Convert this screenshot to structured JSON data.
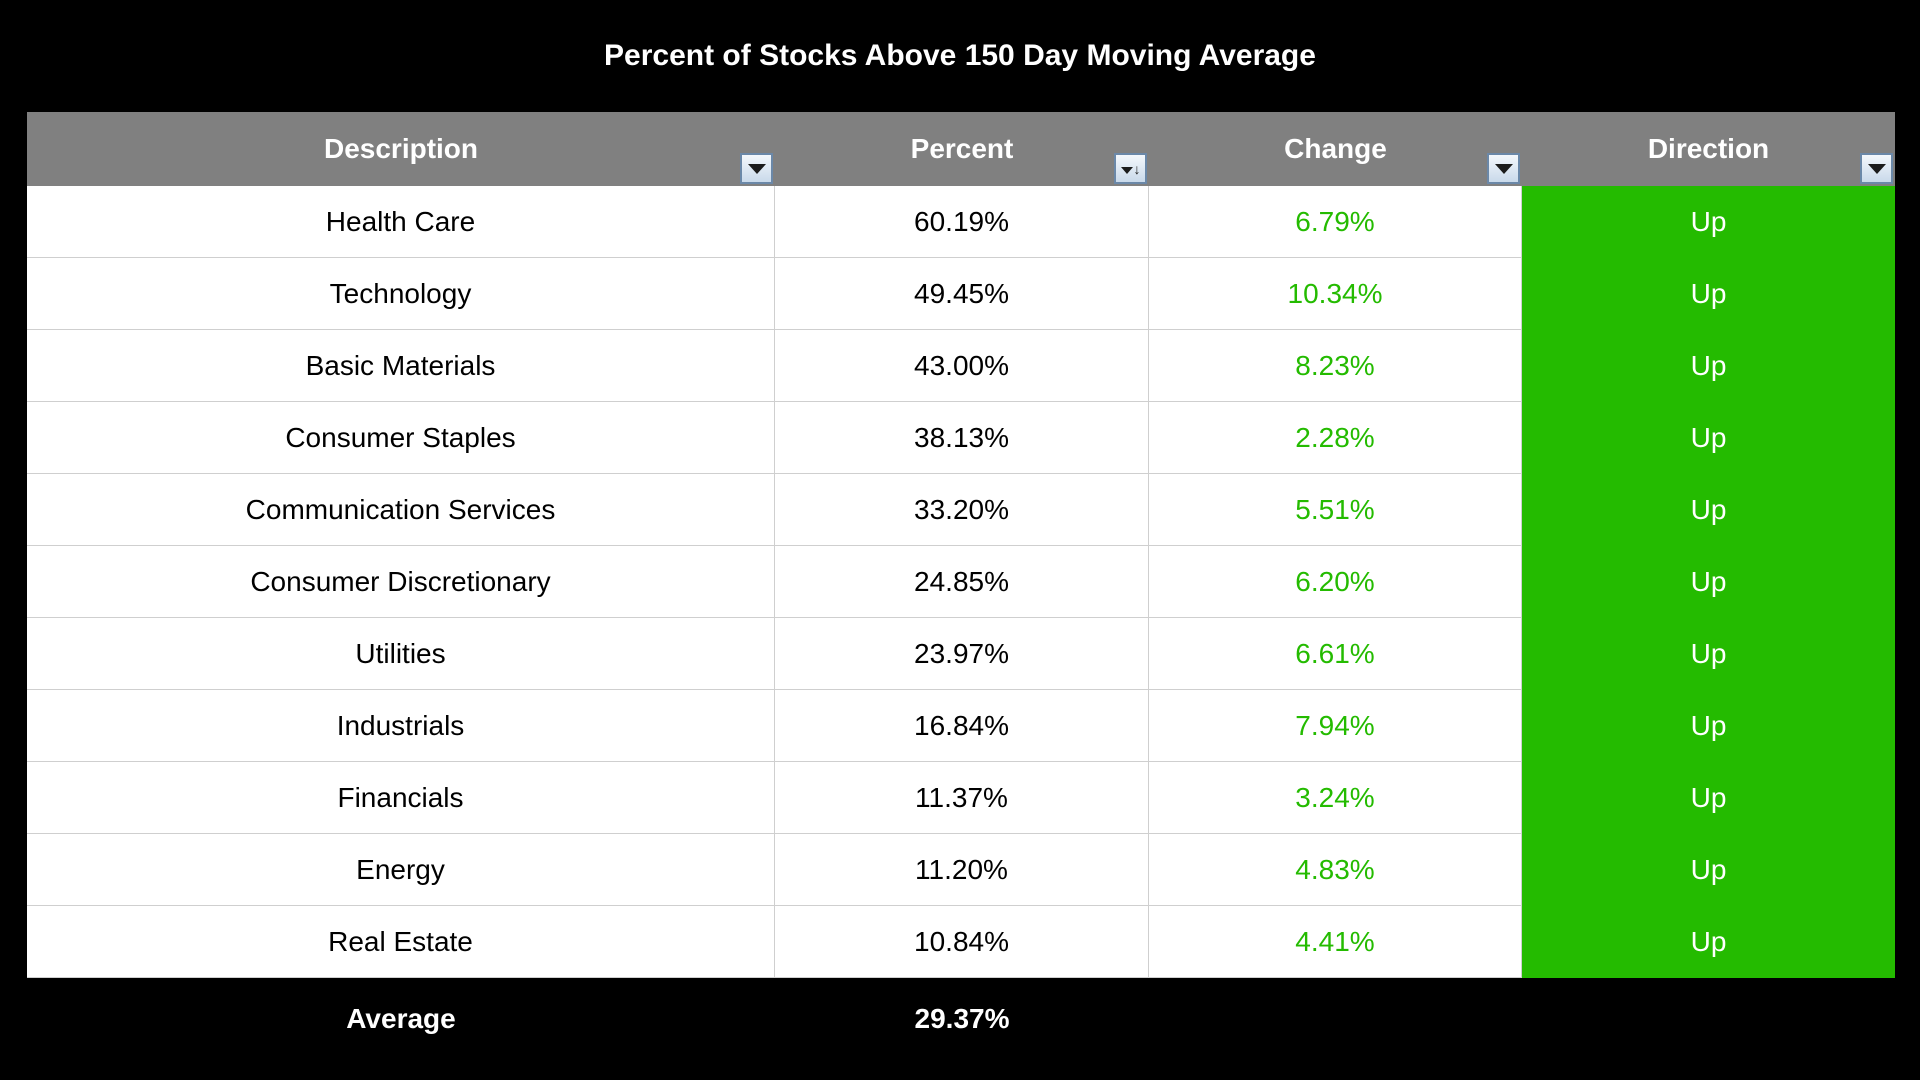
{
  "title": "Percent of Stocks Above 150 Day Moving Average",
  "columns": [
    "Description",
    "Percent",
    "Change",
    "Direction"
  ],
  "colors": {
    "header_bg": "#808080",
    "positive": "#24bb00",
    "background": "#000000"
  },
  "rows": [
    {
      "description": "Health Care",
      "percent": "60.19%",
      "change": "6.79%",
      "direction": "Up"
    },
    {
      "description": "Technology",
      "percent": "49.45%",
      "change": "10.34%",
      "direction": "Up"
    },
    {
      "description": "Basic Materials",
      "percent": "43.00%",
      "change": "8.23%",
      "direction": "Up"
    },
    {
      "description": "Consumer Staples",
      "percent": "38.13%",
      "change": "2.28%",
      "direction": "Up"
    },
    {
      "description": "Communication Services",
      "percent": "33.20%",
      "change": "5.51%",
      "direction": "Up"
    },
    {
      "description": "Consumer Discretionary",
      "percent": "24.85%",
      "change": "6.20%",
      "direction": "Up"
    },
    {
      "description": "Utilities",
      "percent": "23.97%",
      "change": "6.61%",
      "direction": "Up"
    },
    {
      "description": "Industrials",
      "percent": "16.84%",
      "change": "7.94%",
      "direction": "Up"
    },
    {
      "description": "Financials",
      "percent": "11.37%",
      "change": "3.24%",
      "direction": "Up"
    },
    {
      "description": "Energy",
      "percent": "11.20%",
      "change": "4.83%",
      "direction": "Up"
    },
    {
      "description": "Real Estate",
      "percent": "10.84%",
      "change": "4.41%",
      "direction": "Up"
    }
  ],
  "footer": {
    "label": "Average",
    "percent": "29.37%"
  }
}
